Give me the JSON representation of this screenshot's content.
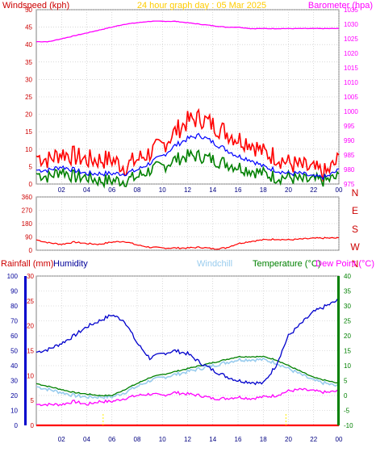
{
  "title": "24 hour graph day : 05 Mar 2025",
  "colors": {
    "windspeed": "#ff0000",
    "windavg": "#0000ff",
    "windlull": "#008000",
    "barometer": "#ff00ff",
    "direction": "#ff0000",
    "humidity": "#0000cc",
    "windchill": "#99ccee",
    "temperature": "#008000",
    "dewpoint": "#ff00ff",
    "rainfall": "#ff0000",
    "frame": "#808080",
    "grid": "#c0c0c0"
  },
  "chart_data": [
    {
      "type": "line",
      "name": "wind-barometer",
      "title": "24 hour graph day : 05 Mar 2025",
      "ylabel_left": "Windspeed (kph)",
      "ylabel_right": "Barometer (hpa)",
      "x_ticks": [
        "02",
        "04",
        "06",
        "08",
        "10",
        "12",
        "14",
        "16",
        "18",
        "20",
        "22",
        "00"
      ],
      "y_left_ticks": [
        "0",
        "5",
        "10",
        "15",
        "20",
        "25",
        "30",
        "35",
        "40",
        "45",
        "50"
      ],
      "y_right_ticks": [
        "975",
        "980",
        "985",
        "990",
        "995",
        "1000",
        "1005",
        "1010",
        "1015",
        "1020",
        "1025",
        "1030",
        "1035"
      ],
      "ylim_left": [
        0,
        50
      ],
      "ylim_right": [
        975,
        1035
      ],
      "x_hours": [
        0,
        1,
        2,
        3,
        4,
        5,
        6,
        7,
        8,
        9,
        10,
        11,
        12,
        13,
        14,
        15,
        16,
        17,
        18,
        19,
        20,
        21,
        22,
        23,
        24
      ],
      "gust": [
        8,
        7,
        9,
        8,
        7,
        7,
        7,
        5,
        7,
        9,
        11,
        15,
        18,
        19,
        17,
        15,
        13,
        12,
        9,
        8,
        6,
        5,
        4,
        3,
        7
      ],
      "average": [
        4,
        4,
        5,
        4,
        3,
        3,
        3,
        3,
        4,
        6,
        8,
        11,
        13,
        14,
        12,
        10,
        8,
        7,
        5,
        4,
        3,
        3,
        2,
        2,
        4
      ],
      "lull": [
        3,
        2,
        4,
        2,
        2,
        1,
        1,
        1,
        2,
        4,
        5,
        7,
        8,
        8,
        7,
        6,
        5,
        4,
        3,
        2,
        2,
        1,
        1,
        1,
        2
      ],
      "barometer": [
        1024,
        1024,
        1025,
        1026,
        1027,
        1028,
        1029,
        1030,
        1030.5,
        1031,
        1031,
        1031,
        1030.5,
        1030,
        1029.5,
        1029,
        1029,
        1028.5,
        1028.5,
        1028.5,
        1028.5,
        1028.5,
        1028.5,
        1028.5,
        1028.5
      ]
    },
    {
      "type": "line",
      "name": "wind-direction",
      "y_left_ticks": [
        "0",
        "90",
        "180",
        "270",
        "360"
      ],
      "y_right_labels": [
        "N",
        "W",
        "S",
        "E",
        "N"
      ],
      "ylim": [
        0,
        360
      ],
      "x_hours": [
        0,
        1,
        2,
        3,
        4,
        5,
        6,
        7,
        8,
        9,
        10,
        11,
        12,
        13,
        14,
        15,
        16,
        17,
        18,
        19,
        20,
        21,
        22,
        23,
        24
      ],
      "direction": [
        70,
        50,
        40,
        55,
        45,
        40,
        55,
        60,
        35,
        20,
        15,
        15,
        15,
        20,
        10,
        15,
        45,
        60,
        70,
        75,
        70,
        75,
        80,
        82,
        82
      ]
    },
    {
      "type": "line",
      "name": "temp-humidity-rain",
      "ylabel_rain": "Rainfall (mm)",
      "ylabel_humidity": "Humidity",
      "label_windchill": "Windchill",
      "ylabel_temperature": "Temperature (°C)",
      "ylabel_dewpoint": "Dew Point (°C)",
      "x_ticks": [
        "02",
        "04",
        "06",
        "08",
        "10",
        "12",
        "14",
        "16",
        "18",
        "20",
        "22",
        "00"
      ],
      "humidity_ticks": [
        "0",
        "10",
        "20",
        "30",
        "40",
        "50",
        "60",
        "70",
        "80",
        "90",
        "100"
      ],
      "rain_ticks": [
        "0",
        "5",
        "10",
        "15",
        "20",
        "25",
        "30"
      ],
      "temp_ticks": [
        "-10",
        "-5",
        "0",
        "5",
        "10",
        "15",
        "20",
        "25",
        "30",
        "35",
        "40"
      ],
      "ylim_humidity": [
        0,
        100
      ],
      "ylim_rain": [
        0,
        30
      ],
      "ylim_temp": [
        -10,
        40
      ],
      "x_hours": [
        0,
        1,
        2,
        3,
        4,
        5,
        6,
        7,
        8,
        9,
        10,
        11,
        12,
        13,
        14,
        15,
        16,
        17,
        18,
        19,
        20,
        21,
        22,
        23,
        24
      ],
      "humidity": [
        49,
        51,
        55,
        60,
        66,
        70,
        74,
        70,
        55,
        45,
        48,
        50,
        48,
        42,
        37,
        33,
        30,
        29,
        28,
        40,
        60,
        68,
        76,
        80,
        84
      ],
      "temperature": [
        4,
        3,
        2,
        1,
        0.5,
        0,
        0,
        2,
        4,
        6,
        7,
        8,
        9,
        10,
        11,
        12,
        13,
        13,
        13,
        12,
        10,
        8,
        6,
        5,
        4
      ],
      "windchill": [
        3,
        2,
        1,
        0,
        -0.5,
        -0.5,
        -0.5,
        1,
        3,
        5,
        6,
        7,
        8,
        9,
        10,
        11,
        12,
        12,
        12,
        11,
        9,
        7,
        5,
        4,
        3
      ],
      "dewpoint": [
        -3,
        -3,
        -3,
        -2,
        -3,
        -2,
        -2,
        -1,
        0,
        0.5,
        0,
        1,
        0.5,
        0,
        -1,
        -1,
        -0.5,
        -1,
        -0.5,
        0,
        1.5,
        2,
        1.5,
        1,
        1.5
      ],
      "rainfall": [
        0,
        0,
        0,
        0,
        0,
        0,
        0,
        0,
        0,
        0,
        0,
        0,
        0,
        0,
        0,
        0,
        0,
        0,
        0,
        0,
        0,
        0,
        0,
        0,
        0
      ],
      "rain_markers_hours": [
        5.3,
        19.8
      ]
    }
  ]
}
